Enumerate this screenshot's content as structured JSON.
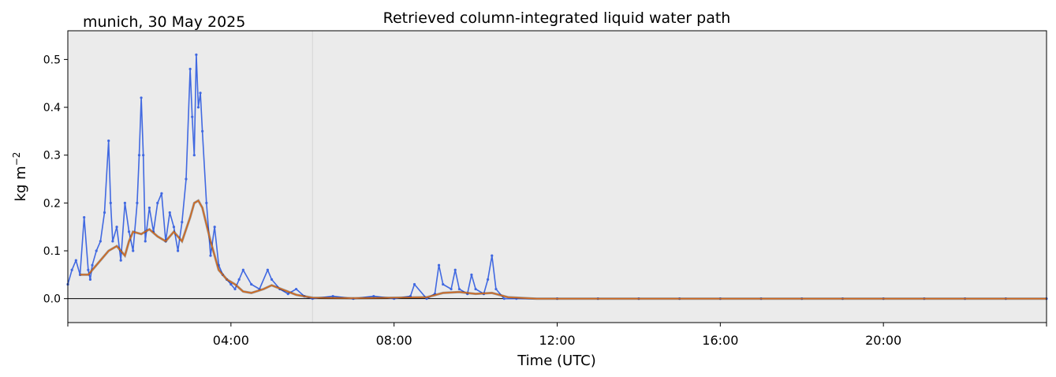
{
  "header": {
    "location_date": "munich, 30 May 2025"
  },
  "chart_data": {
    "type": "scatter",
    "title": "Retrieved column-integrated liquid water path",
    "xlabel": "Time (UTC)",
    "ylabel": "kg m",
    "ylabel_exponent": "−2",
    "xlim": [
      0,
      24
    ],
    "ylim": [
      -0.05,
      0.56
    ],
    "x_unit": "hours UTC",
    "xtick_values": [
      4,
      8,
      12,
      16,
      20
    ],
    "xtick_labels": [
      "04:00",
      "08:00",
      "12:00",
      "16:00",
      "20:00"
    ],
    "ytick_values": [
      0.0,
      0.1,
      0.2,
      0.3,
      0.4,
      0.5
    ],
    "ytick_labels": [
      "0.0",
      "0.1",
      "0.2",
      "0.3",
      "0.4",
      "0.5"
    ],
    "grid": false,
    "zero_line": true,
    "vertical_marker_hour": 6.0,
    "background_color": "#ebebeb",
    "series": [
      {
        "kind": "scatter-raw",
        "color": "#4169e1",
        "x": [
          0.0,
          0.1,
          0.2,
          0.3,
          0.4,
          0.5,
          0.55,
          0.6,
          0.7,
          0.8,
          0.9,
          1.0,
          1.05,
          1.1,
          1.2,
          1.3,
          1.4,
          1.5,
          1.6,
          1.7,
          1.75,
          1.8,
          1.85,
          1.9,
          2.0,
          2.1,
          2.2,
          2.3,
          2.4,
          2.5,
          2.6,
          2.7,
          2.8,
          2.9,
          3.0,
          3.05,
          3.1,
          3.15,
          3.2,
          3.25,
          3.3,
          3.4,
          3.5,
          3.6,
          3.7,
          3.8,
          3.9,
          4.0,
          4.1,
          4.2,
          4.3,
          4.5,
          4.7,
          4.9,
          5.0,
          5.2,
          5.4,
          5.6,
          5.8,
          6.0,
          6.5,
          7.0,
          7.5,
          8.0,
          8.4,
          8.5,
          8.8,
          9.0,
          9.1,
          9.2,
          9.4,
          9.5,
          9.6,
          9.8,
          9.9,
          10.0,
          10.2,
          10.3,
          10.4,
          10.5,
          10.7,
          11.0,
          12.0,
          13.0,
          14.0,
          15.0,
          16.0,
          17.0,
          18.0,
          19.0,
          20.0,
          21.0,
          22.0,
          23.0,
          24.0
        ],
        "y": [
          0.03,
          0.06,
          0.08,
          0.05,
          0.17,
          0.06,
          0.04,
          0.07,
          0.1,
          0.12,
          0.18,
          0.33,
          0.2,
          0.12,
          0.15,
          0.08,
          0.2,
          0.14,
          0.1,
          0.2,
          0.3,
          0.42,
          0.3,
          0.12,
          0.19,
          0.14,
          0.2,
          0.22,
          0.12,
          0.18,
          0.15,
          0.1,
          0.16,
          0.25,
          0.48,
          0.38,
          0.3,
          0.51,
          0.4,
          0.43,
          0.35,
          0.2,
          0.09,
          0.15,
          0.07,
          0.05,
          0.04,
          0.03,
          0.02,
          0.04,
          0.06,
          0.03,
          0.02,
          0.06,
          0.04,
          0.02,
          0.01,
          0.02,
          0.005,
          0.0,
          0.005,
          0.0,
          0.005,
          0.0,
          0.005,
          0.03,
          0.0,
          0.01,
          0.07,
          0.03,
          0.02,
          0.06,
          0.02,
          0.01,
          0.05,
          0.02,
          0.01,
          0.04,
          0.09,
          0.02,
          0.0,
          0.0,
          0.0,
          0.0,
          0.0,
          0.0,
          0.0,
          0.0,
          0.0,
          0.0,
          0.0,
          0.0,
          0.0,
          0.0,
          0.0
        ]
      },
      {
        "kind": "running-mean",
        "color": "#d2691e",
        "x": [
          0.3,
          0.5,
          0.8,
          1.0,
          1.2,
          1.4,
          1.5,
          1.6,
          1.8,
          2.0,
          2.2,
          2.4,
          2.6,
          2.8,
          3.0,
          3.1,
          3.2,
          3.3,
          3.5,
          3.7,
          3.9,
          4.1,
          4.3,
          4.5,
          4.8,
          5.0,
          5.3,
          5.6,
          6.0,
          7.0,
          8.0,
          8.8,
          9.2,
          9.6,
          10.0,
          10.4,
          10.8,
          11.5,
          12.0,
          14.0,
          16.0,
          18.0,
          20.0,
          22.0,
          24.0
        ],
        "y": [
          0.05,
          0.05,
          0.08,
          0.1,
          0.11,
          0.09,
          0.12,
          0.14,
          0.135,
          0.145,
          0.13,
          0.12,
          0.14,
          0.12,
          0.17,
          0.2,
          0.205,
          0.19,
          0.12,
          0.06,
          0.04,
          0.03,
          0.015,
          0.012,
          0.02,
          0.028,
          0.018,
          0.008,
          0.002,
          0.001,
          0.002,
          0.003,
          0.012,
          0.014,
          0.01,
          0.012,
          0.003,
          0.0,
          0.0,
          0.0,
          0.0,
          0.0,
          0.0,
          0.0,
          0.0
        ]
      }
    ]
  }
}
